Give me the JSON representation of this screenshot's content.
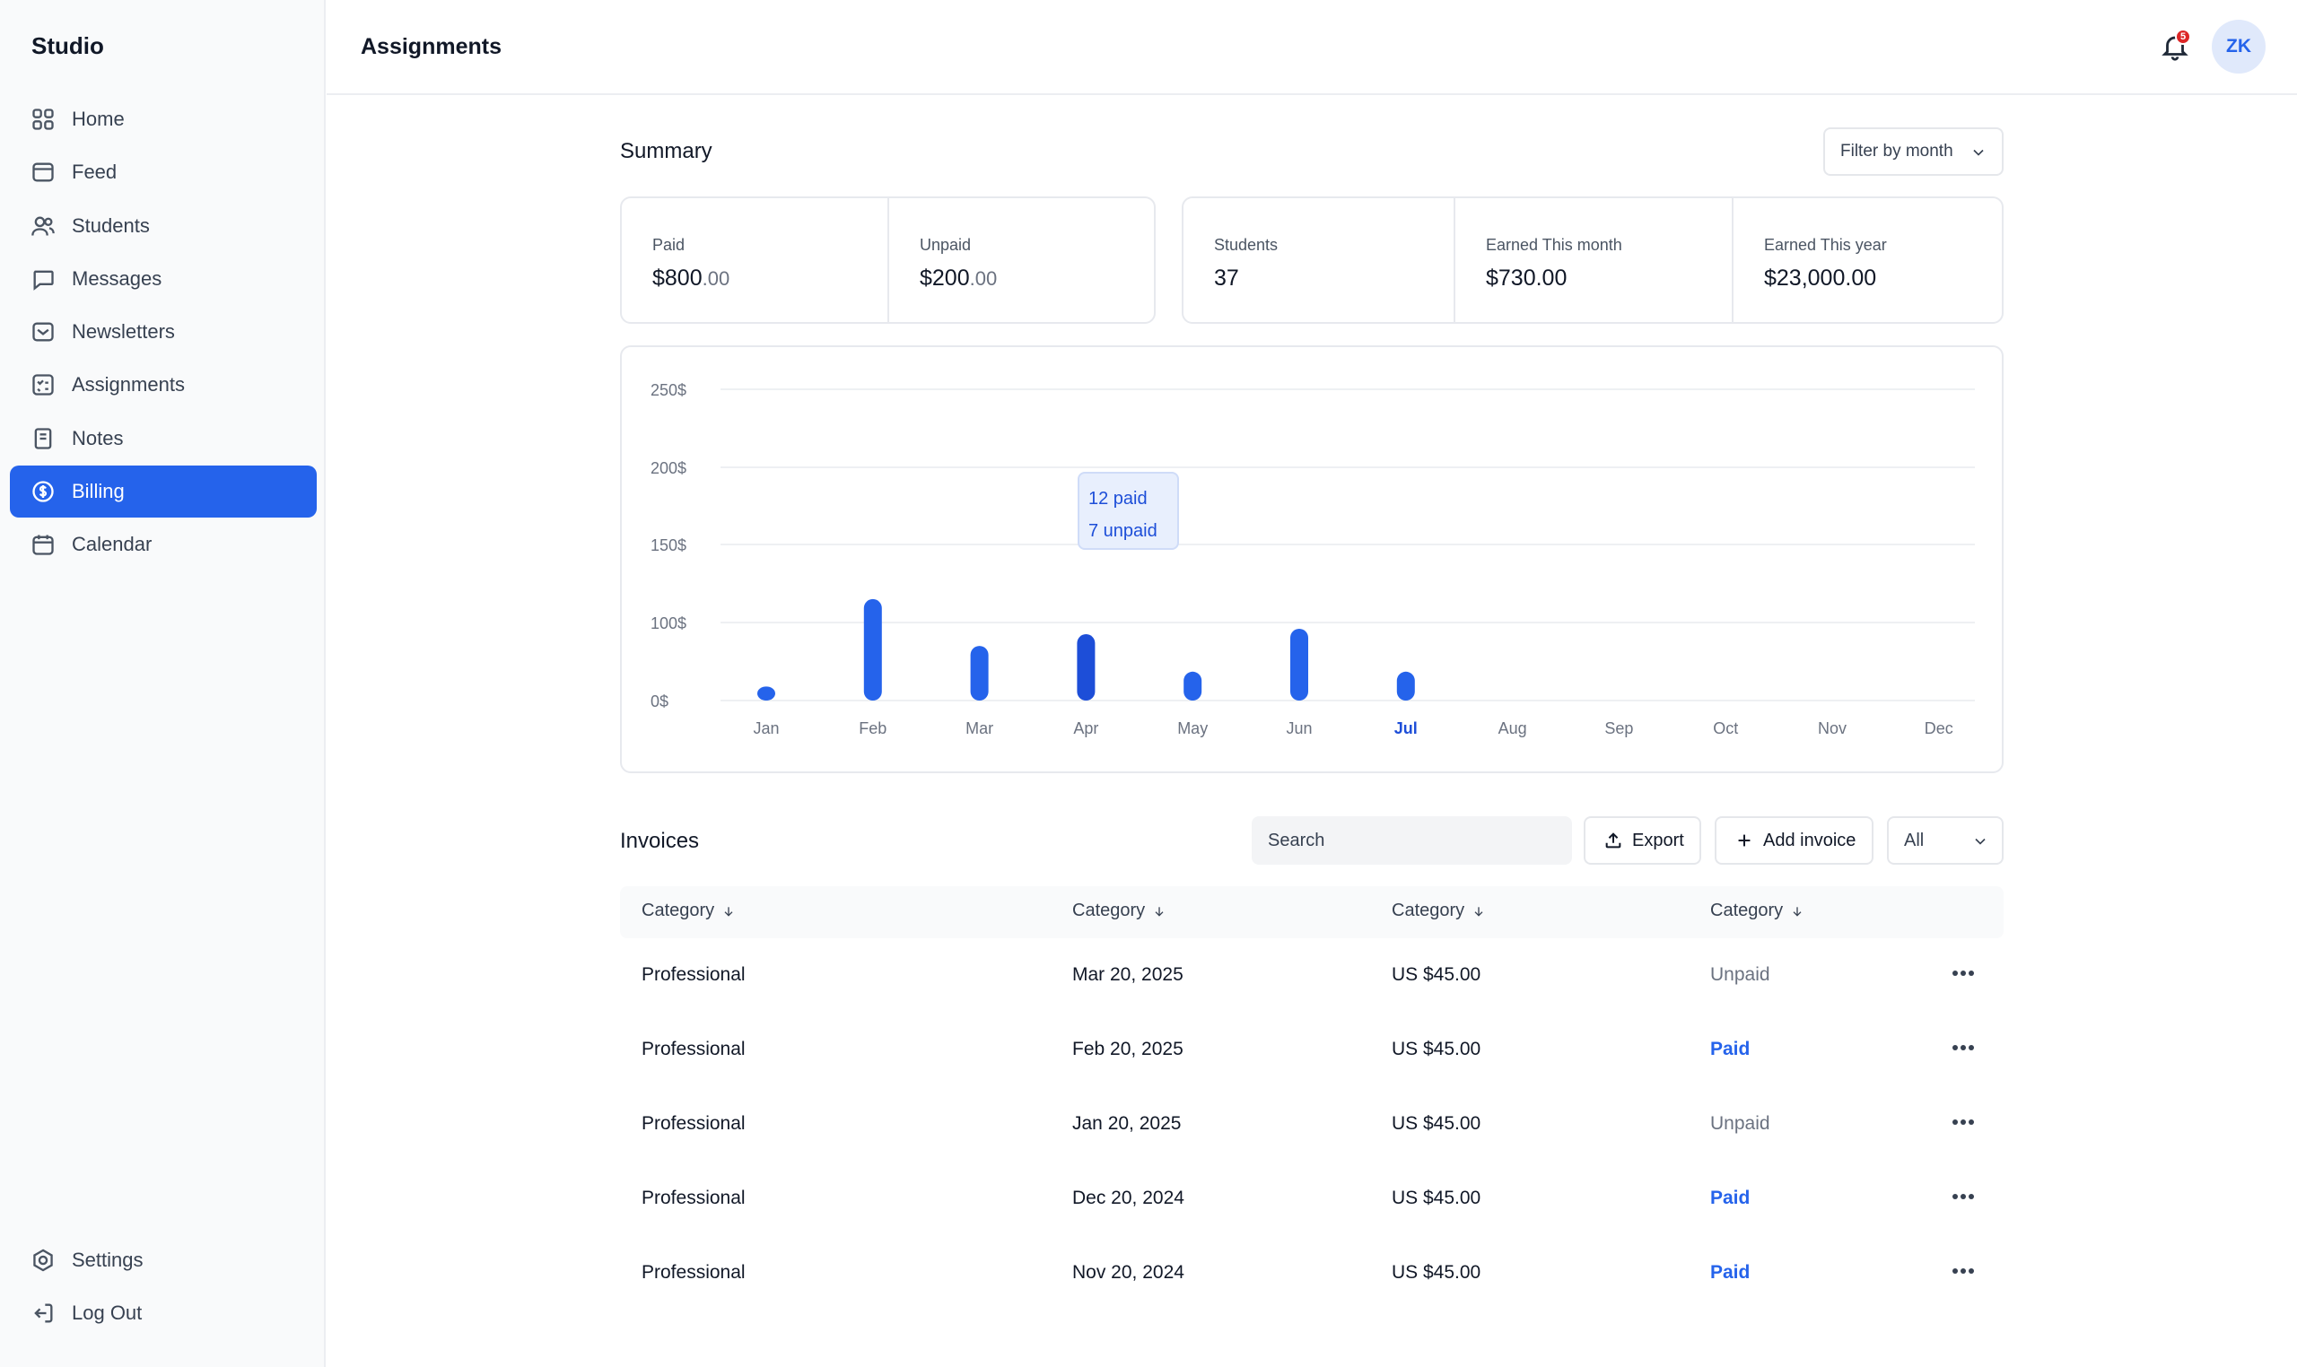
{
  "sidebar": {
    "brand": "Studio",
    "items": [
      {
        "label": "Home",
        "icon": "grid-icon"
      },
      {
        "label": "Feed",
        "icon": "feed-icon"
      },
      {
        "label": "Students",
        "icon": "users-icon"
      },
      {
        "label": "Messages",
        "icon": "chat-icon"
      },
      {
        "label": "Newsletters",
        "icon": "mail-icon"
      },
      {
        "label": "Assignments",
        "icon": "checklist-icon"
      },
      {
        "label": "Notes",
        "icon": "notes-icon"
      },
      {
        "label": "Billing",
        "icon": "dollar-icon",
        "active": true
      },
      {
        "label": "Calendar",
        "icon": "calendar-icon"
      }
    ],
    "bottom": [
      {
        "label": "Settings",
        "icon": "gear-icon"
      },
      {
        "label": "Log Out",
        "icon": "logout-icon"
      }
    ]
  },
  "header": {
    "title": "Assignments",
    "notification_count": "5",
    "avatar_initials": "ZK"
  },
  "summary": {
    "title": "Summary",
    "filter_label": "Filter by month",
    "paid": {
      "label": "Paid",
      "dollars": "$800",
      "cents": ".00"
    },
    "unpaid": {
      "label": "Unpaid",
      "dollars": "$200",
      "cents": ".00"
    },
    "students": {
      "label": "Students",
      "value": "37"
    },
    "earned_month": {
      "label": "Earned This month",
      "value": "$730.00"
    },
    "earned_year": {
      "label": "Earned This year",
      "value": "$23,000.00"
    }
  },
  "chart_data": {
    "type": "bar",
    "categories": [
      "Jan",
      "Feb",
      "Mar",
      "Apr",
      "May",
      "Jun",
      "Jul",
      "Aug",
      "Sep",
      "Oct",
      "Nov",
      "Dec"
    ],
    "values": [
      18,
      115,
      70,
      85,
      37,
      92,
      37,
      null,
      null,
      null,
      null,
      null
    ],
    "highlighted_category": "Jul",
    "hovered_category": "Apr",
    "y_ticks": [
      "0$",
      "100$",
      "150$",
      "200$",
      "250$"
    ],
    "y_tick_values": [
      0,
      100,
      150,
      200,
      250
    ],
    "ylim": [
      0,
      250
    ],
    "grid": true,
    "tooltip": {
      "line1": "12 paid",
      "line2": "7 unpaid"
    },
    "colors": {
      "bar": "#2563eb",
      "bar_hover": "#1d4ed8",
      "grid": "#eef0f3",
      "tick": "#6b7280",
      "highlight": "#1d4ed8"
    }
  },
  "invoices": {
    "title": "Invoices",
    "search_placeholder": "Search",
    "export_label": "Export",
    "add_label": "Add invoice",
    "select_value": "All",
    "columns": [
      "Category",
      "Category",
      "Category",
      "Category"
    ],
    "rows": [
      {
        "category": "Professional",
        "date": "Mar 20, 2025",
        "amount": "US $45.00",
        "status": "Unpaid"
      },
      {
        "category": "Professional",
        "date": "Feb 20, 2025",
        "amount": "US $45.00",
        "status": "Paid"
      },
      {
        "category": "Professional",
        "date": "Jan 20, 2025",
        "amount": "US $45.00",
        "status": "Unpaid"
      },
      {
        "category": "Professional",
        "date": "Dec 20, 2024",
        "amount": "US $45.00",
        "status": "Paid"
      },
      {
        "category": "Professional",
        "date": "Nov 20, 2024",
        "amount": "US $45.00",
        "status": "Paid"
      }
    ]
  }
}
